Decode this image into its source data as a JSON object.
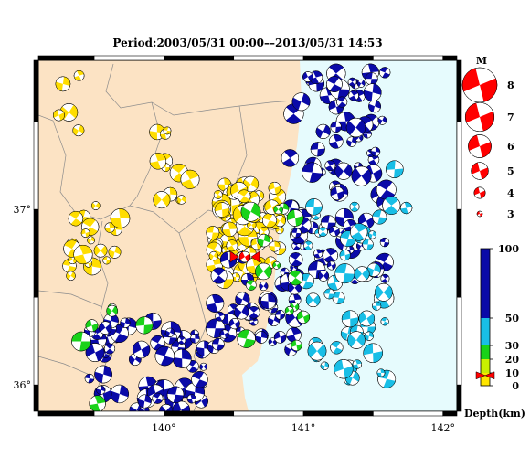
{
  "title": "Period:2003/05/31 00:00––2013/05/31 14:53",
  "map": {
    "lon_range": [
      139.1,
      142.1
    ],
    "lat_range": [
      35.85,
      37.85
    ],
    "x_ticks": [
      {
        "value": 140,
        "label": "140°"
      },
      {
        "value": 141,
        "label": "141°"
      },
      {
        "value": 142,
        "label": "142°"
      }
    ],
    "y_ticks": [
      {
        "value": 37,
        "label": "37°"
      },
      {
        "value": 36,
        "label": "36°"
      }
    ],
    "colors": {
      "land": "#fce3c4",
      "sea": "#e6fbfd",
      "boundaries": "#8c8c8c",
      "frame": "#000000"
    }
  },
  "magnitude_legend": {
    "title": "M",
    "items": [
      {
        "value": 8,
        "label": "8"
      },
      {
        "value": 7,
        "label": "7"
      },
      {
        "value": 6,
        "label": "6"
      },
      {
        "value": 5,
        "label": "5"
      },
      {
        "value": 4,
        "label": "4"
      },
      {
        "value": 3,
        "label": "3"
      }
    ],
    "color": "#ff0000"
  },
  "depth_scale": {
    "label": "Depth(km)",
    "ticks": [
      {
        "value": 100,
        "label": "100"
      },
      {
        "value": 50,
        "label": "50"
      },
      {
        "value": 30,
        "label": "30"
      },
      {
        "value": 20,
        "label": "20"
      },
      {
        "value": 10,
        "label": "10"
      },
      {
        "value": 0,
        "label": "0"
      }
    ],
    "bands": [
      {
        "from": 0,
        "to": 10,
        "color": "#ffe600"
      },
      {
        "from": 10,
        "to": 20,
        "color": "#c8f000"
      },
      {
        "from": 20,
        "to": 30,
        "color": "#19d219"
      },
      {
        "from": 30,
        "to": 50,
        "color": "#19bee6"
      },
      {
        "from": 50,
        "to": 100,
        "color": "#0a0aa8"
      }
    ],
    "marker_depth": 8
  },
  "mainshock": {
    "lon": 140.58,
    "lat": 36.73,
    "color": "#ff0000"
  },
  "clusters": [
    {
      "color": "#ffdd00",
      "lon": [
        140.35,
        140.85
      ],
      "lat": [
        36.6,
        37.15
      ],
      "n": 90
    },
    {
      "color": "#ffdd00",
      "lon": [
        139.3,
        139.7
      ],
      "lat": [
        36.55,
        37.05
      ],
      "n": 20
    },
    {
      "color": "#ffdd00",
      "lon": [
        139.95,
        140.2
      ],
      "lat": [
        37.05,
        37.45
      ],
      "n": 12
    },
    {
      "color": "#ffdd00",
      "lon": [
        139.15,
        139.4
      ],
      "lat": [
        37.45,
        37.8
      ],
      "n": 5
    },
    {
      "color": "#0a0aa8",
      "lon": [
        140.9,
        141.6
      ],
      "lat": [
        36.6,
        37.8
      ],
      "n": 90
    },
    {
      "color": "#0a0aa8",
      "lon": [
        139.45,
        140.3
      ],
      "lat": [
        35.85,
        36.4
      ],
      "n": 60
    },
    {
      "color": "#0a0aa8",
      "lon": [
        140.35,
        140.95
      ],
      "lat": [
        36.2,
        36.75
      ],
      "n": 45
    },
    {
      "color": "#19bee6",
      "lon": [
        141.0,
        141.6
      ],
      "lat": [
        36.0,
        37.1
      ],
      "n": 45
    },
    {
      "color": "#19bee6",
      "lon": [
        141.6,
        141.75
      ],
      "lat": [
        37.0,
        37.3
      ],
      "n": 4
    },
    {
      "color": "#19d219",
      "lon": [
        140.55,
        141.0
      ],
      "lat": [
        36.2,
        37.05
      ],
      "n": 14
    },
    {
      "color": "#19d219",
      "lon": [
        139.35,
        139.9
      ],
      "lat": [
        35.85,
        36.6
      ],
      "n": 6
    }
  ]
}
